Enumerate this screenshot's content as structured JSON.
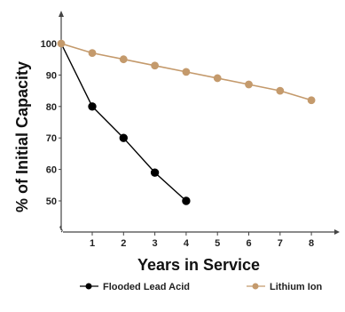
{
  "chart_data": {
    "type": "line",
    "xlabel": "Years in Service",
    "ylabel": "% of Initial Capacity",
    "xlim": [
      0,
      9
    ],
    "ylim": [
      40,
      100
    ],
    "x_ticks": [
      "1",
      "2",
      "3",
      "4",
      "5",
      "6",
      "7",
      "8"
    ],
    "y_ticks": [
      "50",
      "60",
      "70",
      "80",
      "90",
      "100"
    ],
    "grid": false,
    "legend_position": "bottom",
    "series": [
      {
        "name": "Flooded Lead Acid",
        "color": "#000000",
        "x": [
          0,
          1,
          2,
          3,
          4
        ],
        "y": [
          100,
          80,
          70,
          59,
          50
        ]
      },
      {
        "name": "Lithium Ion",
        "color": "#c49a6c",
        "x": [
          0,
          1,
          2,
          3,
          4,
          5,
          6,
          7,
          8
        ],
        "y": [
          100,
          97,
          95,
          93,
          91,
          89,
          87,
          85,
          82
        ]
      }
    ]
  }
}
